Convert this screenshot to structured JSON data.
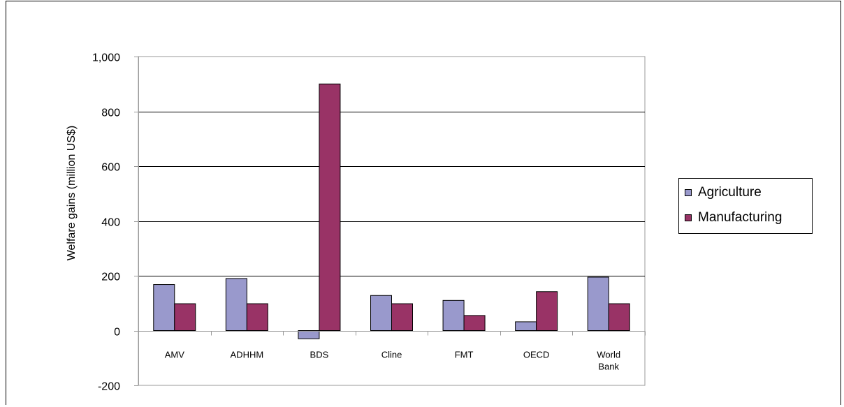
{
  "chart_data": {
    "type": "bar",
    "title": "",
    "xlabel": "",
    "ylabel": "Welfare gains (million US$)",
    "ylim": [
      -200,
      1000
    ],
    "yticks": [
      -200,
      0,
      200,
      400,
      600,
      800,
      1000
    ],
    "ytick_labels": [
      "-200",
      "0",
      "200",
      "400",
      "600",
      "800",
      "1,000"
    ],
    "gridlines_at": [
      200,
      400,
      600,
      800
    ],
    "grid": true,
    "legend_position": "right",
    "categories": [
      [
        "AMV"
      ],
      [
        "ADHHM"
      ],
      [
        "BDS"
      ],
      [
        "Cline"
      ],
      [
        "FMT"
      ],
      [
        "OECD"
      ],
      [
        "World",
        "Bank"
      ]
    ],
    "series": [
      {
        "name": "Agriculture",
        "color": "#9999cc",
        "values": [
          168,
          190,
          -30,
          128,
          110,
          32,
          195
        ]
      },
      {
        "name": "Manufacturing",
        "color": "#993366",
        "values": [
          98,
          98,
          900,
          98,
          55,
          142,
          98
        ]
      }
    ]
  }
}
